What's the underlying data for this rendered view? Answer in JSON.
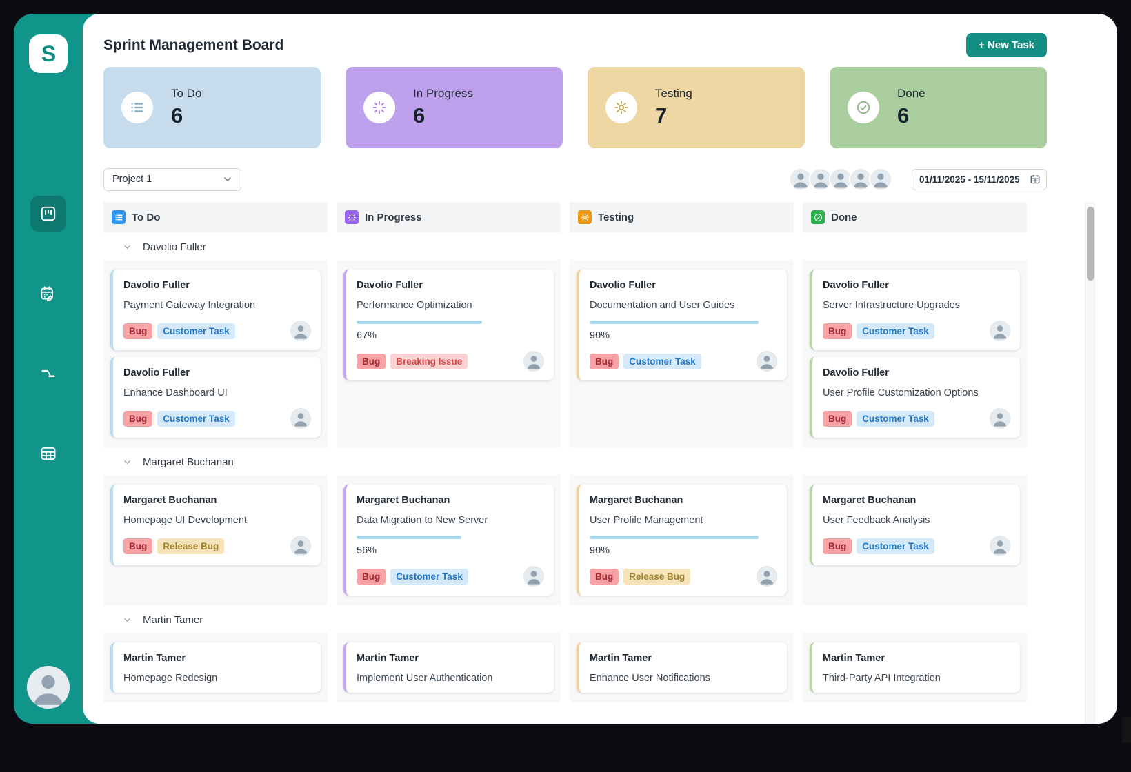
{
  "app": {
    "title": "Sprint Management Board",
    "new_task_label": "+ New Task",
    "logo_letter": "S",
    "brand_color": "#119489"
  },
  "sidebar": {
    "items": [
      {
        "icon": "kanban-board-icon",
        "active": true
      },
      {
        "icon": "calendar-edit-icon",
        "active": false
      },
      {
        "icon": "flow-icon",
        "active": false
      },
      {
        "icon": "table-grid-icon",
        "active": false
      }
    ]
  },
  "summary_cards": [
    {
      "label": "To Do",
      "count": 6,
      "bg": "#c6dcec",
      "icon": "list-icon",
      "icon_color": "#8fabbf"
    },
    {
      "label": "In Progress",
      "count": 6,
      "bg": "#bfa0ed",
      "icon": "progress-icon",
      "icon_color": "#a685e6"
    },
    {
      "label": "Testing",
      "count": 7,
      "bg": "#eed7a3",
      "icon": "gear-icon",
      "icon_color": "#c8a84a"
    },
    {
      "label": "Done",
      "count": 6,
      "bg": "#aace9d",
      "icon": "check-icon",
      "icon_color": "#8fb282"
    }
  ],
  "filters": {
    "project_selected": "Project 1",
    "date_range": "01/11/2025 - 15/11/2025",
    "member_avatars": 5
  },
  "board": {
    "columns": [
      {
        "key": "todo",
        "label": "To Do",
        "icon": "list-icon",
        "icon_bg": "#2e96ef",
        "card_border": "#b9d9ee"
      },
      {
        "key": "inprogress",
        "label": "In Progress",
        "icon": "progress-icon",
        "icon_bg": "#9c64f2",
        "card_border": "#cba7f2"
      },
      {
        "key": "testing",
        "label": "Testing",
        "icon": "gear-icon",
        "icon_bg": "#f0980f",
        "card_border": "#f0d09c"
      },
      {
        "key": "done",
        "label": "Done",
        "icon": "check-icon",
        "icon_bg": "#2bb14c",
        "card_border": "#b4d8a7"
      }
    ],
    "tag_styles": {
      "Bug": {
        "bg": "#f7a3a6",
        "color": "#a62a32"
      },
      "Customer Task": {
        "bg": "#d6e9f9",
        "color": "#2277c8"
      },
      "Breaking Issue": {
        "bg": "#fbd2d2",
        "color": "#d94848"
      },
      "Release Bug": {
        "bg": "#f5e3ba",
        "color": "#a1832c"
      }
    },
    "progress_bar_color": "#a6d4e8",
    "groups": [
      {
        "name": "Davolio Fuller",
        "cards": {
          "todo": [
            {
              "assignee": "Davolio Fuller",
              "title": "Payment Gateway Integration",
              "tags": [
                "Bug",
                "Customer Task"
              ]
            },
            {
              "assignee": "Davolio Fuller",
              "title": "Enhance Dashboard UI",
              "tags": [
                "Bug",
                "Customer Task"
              ]
            }
          ],
          "inprogress": [
            {
              "assignee": "Davolio Fuller",
              "title": "Performance Optimization",
              "progress": 67,
              "tags": [
                "Bug",
                "Breaking Issue"
              ]
            }
          ],
          "testing": [
            {
              "assignee": "Davolio Fuller",
              "title": "Documentation and User Guides",
              "progress": 90,
              "tags": [
                "Bug",
                "Customer Task"
              ]
            }
          ],
          "done": [
            {
              "assignee": "Davolio Fuller",
              "title": "Server Infrastructure Upgrades",
              "tags": [
                "Bug",
                "Customer Task"
              ]
            },
            {
              "assignee": "Davolio Fuller",
              "title": "User Profile Customization Options",
              "tags": [
                "Bug",
                "Customer Task"
              ]
            }
          ]
        }
      },
      {
        "name": "Margaret Buchanan",
        "cards": {
          "todo": [
            {
              "assignee": "Margaret Buchanan",
              "title": "Homepage UI Development",
              "tags": [
                "Bug",
                "Release Bug"
              ]
            }
          ],
          "inprogress": [
            {
              "assignee": "Margaret Buchanan",
              "title": "Data Migration to New Server",
              "progress": 56,
              "tags": [
                "Bug",
                "Customer Task"
              ]
            }
          ],
          "testing": [
            {
              "assignee": "Margaret Buchanan",
              "title": "User Profile Management",
              "progress": 90,
              "tags": [
                "Bug",
                "Release Bug"
              ]
            }
          ],
          "done": [
            {
              "assignee": "Margaret Buchanan",
              "title": "User Feedback Analysis",
              "tags": [
                "Bug",
                "Customer Task"
              ]
            }
          ]
        }
      },
      {
        "name": "Martin Tamer",
        "cards": {
          "todo": [
            {
              "assignee": "Martin Tamer",
              "title": "Homepage Redesign"
            }
          ],
          "inprogress": [
            {
              "assignee": "Martin Tamer",
              "title": "Implement User Authentication"
            }
          ],
          "testing": [
            {
              "assignee": "Martin Tamer",
              "title": "Enhance User Notifications"
            }
          ],
          "done": [
            {
              "assignee": "Martin Tamer",
              "title": "Third-Party API Integration"
            }
          ]
        }
      }
    ]
  }
}
